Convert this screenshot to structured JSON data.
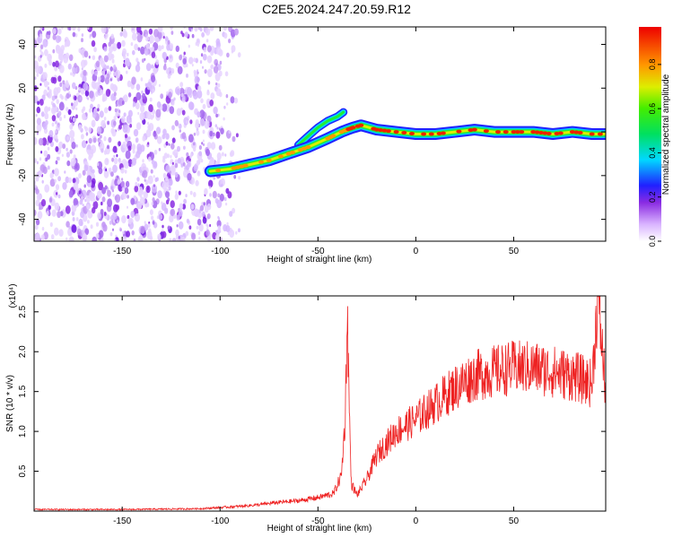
{
  "title": "C2E5.2024.247.20.59.R12",
  "colors": {
    "spectrogram_noise": "#8a2be2",
    "snr_line": "#ee2222"
  },
  "chart_data": [
    {
      "type": "heatmap",
      "xlabel": "Height of straight line (km)",
      "ylabel": "Frequency (Hz)",
      "xlim": [
        -195,
        97
      ],
      "ylim": [
        -50,
        48
      ],
      "x_ticks": [
        -150,
        -100,
        -50,
        0,
        50
      ],
      "y_ticks": [
        -40,
        -20,
        0,
        20,
        40
      ],
      "colorbar": {
        "label": "Normalized spectral amplitude",
        "range": [
          0.0,
          0.97
        ],
        "ticks": [
          0.0,
          0.2,
          0.4,
          0.6,
          0.8
        ]
      },
      "noise_region_x": [
        -195,
        -90
      ],
      "main_trace": {
        "x": [
          -105,
          -95,
          -85,
          -75,
          -65,
          -55,
          -45,
          -38,
          -35,
          -32,
          -28,
          -20,
          -10,
          0,
          10,
          20,
          30,
          40,
          50,
          60,
          70,
          80,
          90,
          97
        ],
        "y": [
          -18,
          -17,
          -15,
          -13,
          -10,
          -7,
          -3,
          0,
          1,
          2,
          3,
          1,
          0,
          -1,
          -1,
          0,
          1,
          0,
          0,
          0,
          -1,
          0,
          -1,
          -1
        ]
      },
      "upper_branch": {
        "x": [
          -60,
          -55,
          -50,
          -45,
          -40,
          -37
        ],
        "y": [
          -6,
          -2,
          2,
          5,
          7,
          9
        ]
      }
    },
    {
      "type": "line",
      "xlabel": "Height of straight line (km)",
      "ylabel": "SNR (10 * v/v)",
      "y_multiplier": "(x10⁴)",
      "xlim": [
        -195,
        97
      ],
      "ylim": [
        0,
        2.7
      ],
      "x_ticks": [
        -150,
        -100,
        -50,
        0,
        50
      ],
      "y_ticks": [
        0.5,
        1.0,
        1.5,
        2.0,
        2.5
      ],
      "series": [
        {
          "x": [
            -195,
            -150,
            -110,
            -90,
            -80,
            -70,
            -60,
            -50,
            -42,
            -38,
            -36,
            -35,
            -34,
            -33,
            -30,
            -25,
            -20,
            -10,
            0,
            10,
            20,
            30,
            40,
            50,
            60,
            70,
            80,
            90,
            93,
            97
          ],
          "y": [
            0.02,
            0.02,
            0.03,
            0.06,
            0.08,
            0.11,
            0.13,
            0.17,
            0.22,
            0.45,
            1.2,
            2.55,
            1.3,
            0.35,
            0.2,
            0.4,
            0.7,
            1.0,
            1.15,
            1.35,
            1.55,
            1.7,
            1.75,
            1.8,
            1.8,
            1.75,
            1.7,
            1.6,
            2.7,
            1.5
          ]
        }
      ]
    }
  ]
}
